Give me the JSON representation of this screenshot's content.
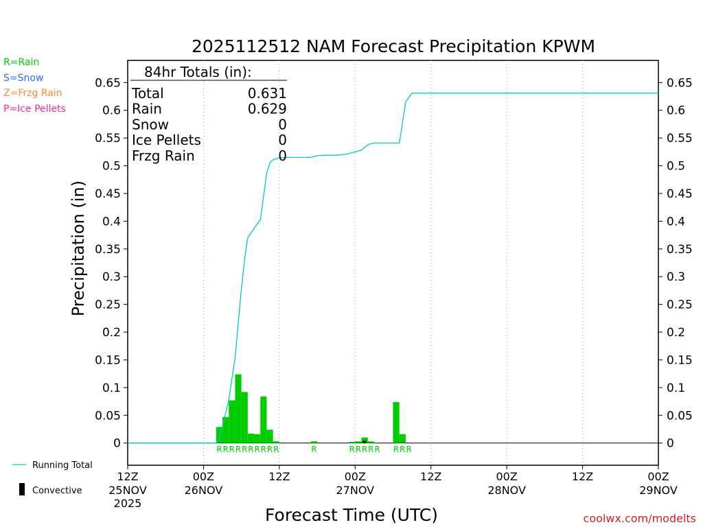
{
  "chart_data": {
    "type": "bar",
    "title": "2025112512 NAM Forecast Precipitation KPWM",
    "xlabel": "Forecast Time (UTC)",
    "ylabel": "Precipitation (in)",
    "ylim": [
      -0.04,
      0.69
    ],
    "yticks": [
      0,
      0.05,
      0.1,
      0.15,
      0.2,
      0.25,
      0.3,
      0.35,
      0.4,
      0.45,
      0.5,
      0.55,
      0.6,
      0.65
    ],
    "ytick_labels": [
      "0",
      "0.05",
      "0.1",
      "0.15",
      "0.2",
      "0.25",
      "0.3",
      "0.35",
      "0.4",
      "0.45",
      "0.5",
      "0.55",
      "0.6",
      "0.65"
    ],
    "xlim_hours": [
      0,
      84
    ],
    "x_unit": "forecast hour",
    "xticks": [
      {
        "hour": 0,
        "line1": "12Z",
        "line2": "25NOV",
        "line3": "2025"
      },
      {
        "hour": 12,
        "line1": "00Z",
        "line2": "26NOV",
        "line3": ""
      },
      {
        "hour": 24,
        "line1": "12Z",
        "line2": "",
        "line3": ""
      },
      {
        "hour": 36,
        "line1": "00Z",
        "line2": "27NOV",
        "line3": ""
      },
      {
        "hour": 48,
        "line1": "12Z",
        "line2": "",
        "line3": ""
      },
      {
        "hour": 60,
        "line1": "00Z",
        "line2": "28NOV",
        "line3": ""
      },
      {
        "hour": 72,
        "line1": "12Z",
        "line2": "",
        "line3": ""
      },
      {
        "hour": 84,
        "line1": "00Z",
        "line2": "29NOV",
        "line3": ""
      }
    ],
    "gridlines_at_hours": [
      12,
      24,
      36,
      48,
      60,
      72
    ],
    "series": [
      {
        "name": "Hourly Precipitation (Rain)",
        "type": "bar",
        "color": "#00cc00",
        "bar_width_hours": 1,
        "x": [
          15,
          16,
          17,
          18,
          19,
          20,
          21,
          22,
          23,
          24,
          30,
          36,
          37,
          38,
          39,
          43,
          44
        ],
        "values": [
          0.029,
          0.047,
          0.077,
          0.124,
          0.092,
          0.017,
          0.016,
          0.084,
          0.024,
          0.003,
          0.003,
          0.002,
          0.003,
          0.01,
          0.003,
          0.074,
          0.016
        ]
      },
      {
        "name": "Convective",
        "type": "bar",
        "color": "#000000",
        "x": [
          38
        ],
        "values": [
          0.004
        ]
      },
      {
        "name": "Running Total",
        "type": "line",
        "color": "#00c8c8",
        "x": [
          0,
          14,
          14.5,
          15,
          16,
          17,
          18,
          18.5,
          19,
          20,
          21,
          22,
          22.5,
          23,
          24,
          25,
          26,
          27,
          28,
          29,
          30,
          31,
          32,
          33,
          34,
          35,
          36,
          37,
          38,
          39,
          40,
          41,
          42,
          43,
          44,
          45,
          46,
          84
        ],
        "values": [
          0,
          0,
          0.005,
          0.03,
          0.077,
          0.154,
          0.278,
          0.33,
          0.37,
          0.387,
          0.403,
          0.487,
          0.505,
          0.511,
          0.514,
          0.515,
          0.515,
          0.515,
          0.515,
          0.515,
          0.518,
          0.519,
          0.519,
          0.519,
          0.52,
          0.522,
          0.525,
          0.528,
          0.538,
          0.541,
          0.541,
          0.541,
          0.541,
          0.541,
          0.615,
          0.631,
          0.631,
          0.631
        ]
      }
    ],
    "ptype_labels": [
      {
        "hour": 15,
        "label": "R"
      },
      {
        "hour": 16,
        "label": "R"
      },
      {
        "hour": 17,
        "label": "R"
      },
      {
        "hour": 18,
        "label": "R"
      },
      {
        "hour": 19,
        "label": "R"
      },
      {
        "hour": 20,
        "label": "R"
      },
      {
        "hour": 21,
        "label": "R"
      },
      {
        "hour": 22,
        "label": "R"
      },
      {
        "hour": 23,
        "label": "R"
      },
      {
        "hour": 24,
        "label": "R"
      },
      {
        "hour": 30,
        "label": "R"
      },
      {
        "hour": 36,
        "label": "R"
      },
      {
        "hour": 37,
        "label": "R"
      },
      {
        "hour": 38,
        "label": "R"
      },
      {
        "hour": 39,
        "label": "R"
      },
      {
        "hour": 40,
        "label": "R"
      },
      {
        "hour": 43,
        "label": "R"
      },
      {
        "hour": 44,
        "label": "R"
      },
      {
        "hour": 45,
        "label": "R"
      }
    ],
    "totals_box": {
      "header": "84hr Totals (in):",
      "rows": [
        {
          "label": "Total",
          "value": "0.631"
        },
        {
          "label": "Rain",
          "value": "0.629"
        },
        {
          "label": "Snow",
          "value": "0"
        },
        {
          "label": "Ice Pellets",
          "value": "0"
        },
        {
          "label": "Frzg Rain",
          "value": "0"
        }
      ]
    },
    "ptype_legend": [
      {
        "text": "R=Rain",
        "color": "#00cc00"
      },
      {
        "text": "S=Snow",
        "color": "#3366ff"
      },
      {
        "text": "Z=Frzg Rain",
        "color": "#ff8833"
      },
      {
        "text": "P=Ice Pellets",
        "color": "#ff2299"
      }
    ],
    "series_legend": [
      {
        "text": "Running Total",
        "kind": "line",
        "color": "#00c8c8"
      },
      {
        "text": "Convective",
        "kind": "bar",
        "color": "#000000"
      }
    ],
    "credit": "coolwx.com/modelts"
  }
}
